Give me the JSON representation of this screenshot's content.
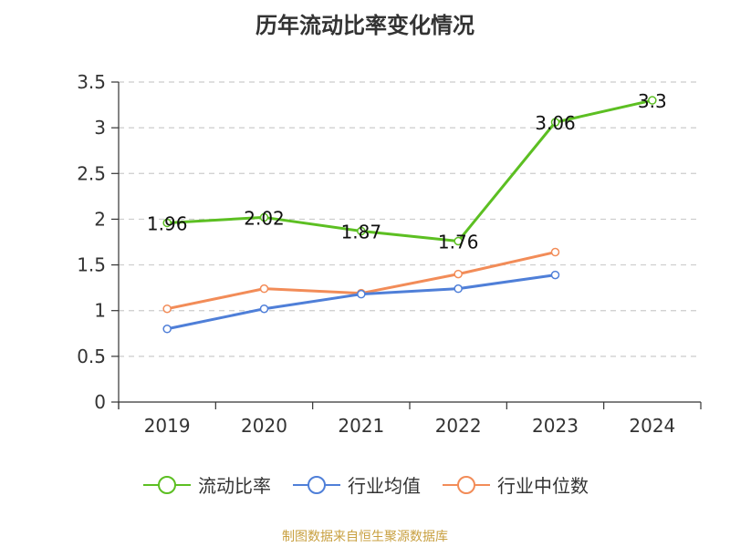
{
  "title": "历年流动比率变化情况",
  "source": "制图数据来自恒生聚源数据库",
  "colors": {
    "source_text": "#c8a040",
    "grid": "#cccccc",
    "axis": "#333333"
  },
  "chart_data": {
    "type": "line",
    "title": "历年流动比率变化情况",
    "x": [
      "2019",
      "2020",
      "2021",
      "2022",
      "2023",
      "2024"
    ],
    "ylim": [
      0,
      3.5
    ],
    "yticks": [
      "0",
      "0.5",
      "1",
      "1.5",
      "2",
      "2.5",
      "3",
      "3.5"
    ],
    "grid": true,
    "legend_position": "bottom",
    "series": [
      {
        "name": "流动比率",
        "color": "#5cbf22",
        "values": [
          1.96,
          2.02,
          1.87,
          1.76,
          3.06,
          3.3
        ],
        "labels": [
          "1.96",
          "2.02",
          "1.87",
          "1.76",
          "3.06",
          "3.3"
        ]
      },
      {
        "name": "行业均值",
        "color": "#4f7fd8",
        "values": [
          0.8,
          1.02,
          1.18,
          1.24,
          1.39,
          null
        ]
      },
      {
        "name": "行业中位数",
        "color": "#f28c58",
        "values": [
          1.02,
          1.24,
          1.19,
          1.4,
          1.64,
          null
        ]
      }
    ]
  }
}
